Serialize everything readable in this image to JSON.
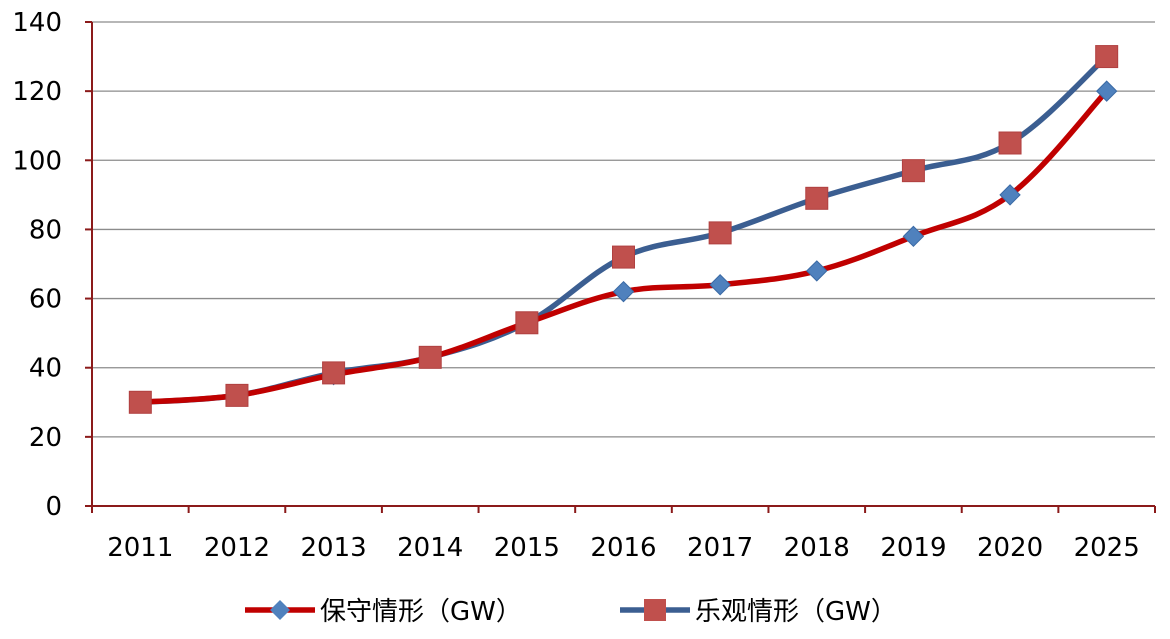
{
  "chart_data": {
    "type": "line",
    "categories": [
      "2011",
      "2012",
      "2013",
      "2014",
      "2015",
      "2016",
      "2017",
      "2018",
      "2019",
      "2020",
      "2025"
    ],
    "ylim": [
      0,
      140
    ],
    "yticks": [
      0,
      20,
      40,
      60,
      80,
      100,
      120,
      140
    ],
    "grid": true,
    "legend_position": "bottom",
    "series": [
      {
        "name": "保守情形（GW）",
        "values": [
          30,
          32,
          38,
          43,
          53,
          62,
          64,
          68,
          78,
          90,
          120
        ],
        "color": "#c00000",
        "marker": "diamond",
        "marker_color": "#4f81bd"
      },
      {
        "name": "乐观情形（GW）",
        "values": [
          30,
          32,
          38.5,
          43,
          53,
          72,
          79,
          89,
          97,
          105,
          130
        ],
        "color": "#3b5e91",
        "marker": "square",
        "marker_color": "#c0504d"
      }
    ]
  }
}
